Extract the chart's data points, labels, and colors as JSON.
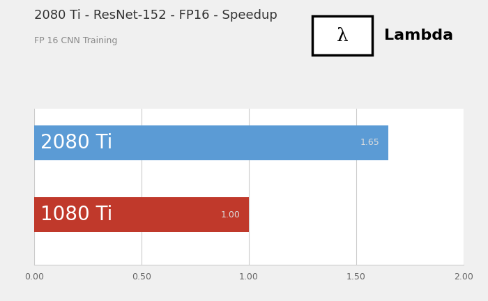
{
  "title": "2080 Ti - ResNet-152 - FP16 - Speedup",
  "subtitle": "FP 16 CNN Training",
  "categories": [
    "2080 Ti",
    "1080 Ti"
  ],
  "values": [
    1.65,
    1.0
  ],
  "bar_colors": [
    "#5b9bd5",
    "#c0392b"
  ],
  "bar_labels": [
    "1.65",
    "1.00"
  ],
  "xlim": [
    0,
    2.0
  ],
  "xticks": [
    0.0,
    0.5,
    1.0,
    1.5,
    2.0
  ],
  "xtick_labels": [
    "0.00",
    "0.50",
    "1.00",
    "1.50",
    "2.00"
  ],
  "background_color": "#f0f0f0",
  "plot_bg_color": "#ffffff",
  "title_fontsize": 13,
  "subtitle_fontsize": 9,
  "bar_label_fontsize": 9,
  "category_label_fontsize": 20,
  "tick_fontsize": 9,
  "grid_color": "#cccccc",
  "bar_label_color": "#dddddd",
  "category_text_color": "#ffffff",
  "title_color": "#333333",
  "subtitle_color": "#888888"
}
